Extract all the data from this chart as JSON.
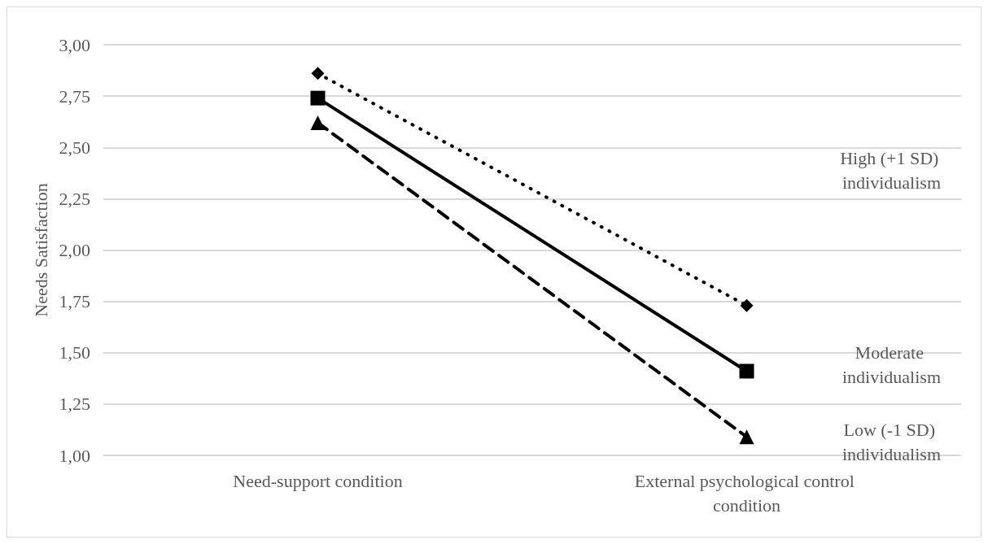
{
  "chart_data": {
    "type": "line",
    "ylabel": "Needs Satisfaction",
    "categories": [
      "Need-support condition",
      "External psychological control condition"
    ],
    "series": [
      {
        "name": "High (+1 SD) individualism",
        "color": "#000000",
        "values": [
          2.86,
          1.73
        ],
        "marker": "diamond",
        "line_style": "dotted"
      },
      {
        "name": "Moderate individualism",
        "color": "#000000",
        "values": [
          2.74,
          1.41
        ],
        "marker": "square",
        "line_style": "solid"
      },
      {
        "name": "Low (-1 SD) individualism",
        "color": "#000000",
        "values": [
          2.62,
          1.09
        ],
        "marker": "triangle",
        "line_style": "dashed"
      }
    ],
    "ylim": [
      1,
      3
    ],
    "yticks": [
      {
        "value": 1,
        "label": "1,00"
      },
      {
        "value": 1.25,
        "label": "1,25"
      },
      {
        "value": 1.5,
        "label": "1,50"
      },
      {
        "value": 1.75,
        "label": "1,75"
      },
      {
        "value": 2,
        "label": "2,00"
      },
      {
        "value": 2.25,
        "label": "2,25"
      },
      {
        "value": 2.5,
        "label": "2,50"
      },
      {
        "value": 2.75,
        "label": "2,75"
      },
      {
        "value": 3,
        "label": "3,00"
      }
    ],
    "grid": "y",
    "legend": false
  }
}
